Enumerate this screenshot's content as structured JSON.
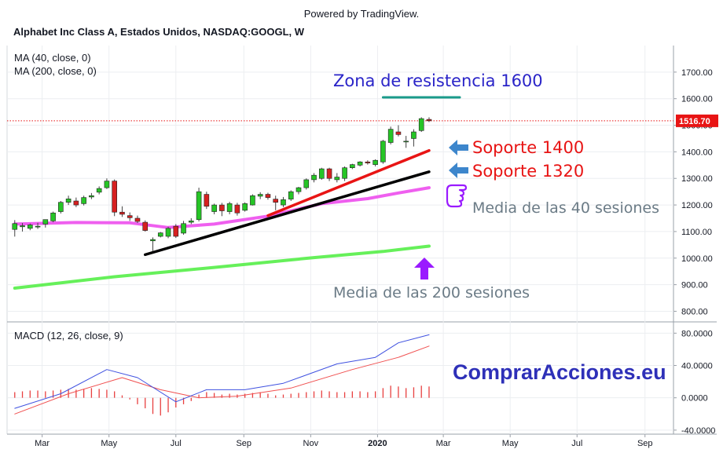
{
  "header": {
    "powered_by": "Powered by TradingView.",
    "symbol": "Alphabet Inc Class A, Estados Unidos, NASDAQ:GOOGL, W"
  },
  "indicators": {
    "ma40": "MA (40, close, 0)",
    "ma200": "MA (200, close, 0)",
    "macd": "MACD (12, 26, close, 9)"
  },
  "annotations": {
    "resistance": "Zona de resistencia 1600",
    "support_1400": "Soporte 1400",
    "support_1320": "Soporte 1320",
    "ma40_label": "Media de las 40 sesiones",
    "ma200_label": "Media de las 200 sesiones",
    "brand": "ComprarAcciones.eu"
  },
  "colors": {
    "up": "#26c526",
    "down": "#d62020",
    "ma40": "#ef5fef",
    "ma200": "#66f05a",
    "support_1400": "#e81414",
    "support_1320": "#000000",
    "resistance": "#1a9a8a",
    "last_price_tag": "#e81414",
    "arrow_blue": "#3d86cc",
    "arrow_purple": "#9a1aff",
    "brand": "#2e30b8",
    "macd_line": "#3f51e0",
    "signal_line": "#f05050",
    "hist": "#e84040"
  },
  "icons": {
    "support_arrows": "left-arrow-icon",
    "ma200_arrow": "up-arrow-icon",
    "ma40_pointer": "pointing-hand-icon"
  },
  "chart_data": [
    {
      "type": "candlestick",
      "interval": "W",
      "price_axis": {
        "ticks": [
          "1700.00",
          "1600.00",
          "1500.00",
          "1400.00",
          "1300.00",
          "1200.00",
          "1100.00",
          "1000.00",
          "900.00",
          "800.00"
        ],
        "range": [
          760,
          1800
        ]
      },
      "last_price": "1516.70",
      "time_axis": [
        "Mar",
        "May",
        "Jul",
        "Sep",
        "Nov",
        "2020",
        "Mar",
        "May",
        "Jul",
        "Sep"
      ],
      "x_range": [
        "2019-01-28",
        "2020-09-27"
      ],
      "candles": [
        {
          "date": "2019-02-04",
          "o": 1108,
          "h": 1143,
          "l": 1081,
          "c": 1130
        },
        {
          "date": "2019-02-11",
          "o": 1118,
          "h": 1132,
          "l": 1100,
          "c": 1122
        },
        {
          "date": "2019-02-18",
          "o": 1112,
          "h": 1130,
          "l": 1105,
          "c": 1125
        },
        {
          "date": "2019-02-25",
          "o": 1118,
          "h": 1133,
          "l": 1110,
          "c": 1120
        },
        {
          "date": "2019-03-04",
          "o": 1128,
          "h": 1142,
          "l": 1115,
          "c": 1145
        },
        {
          "date": "2019-03-11",
          "o": 1140,
          "h": 1175,
          "l": 1135,
          "c": 1170
        },
        {
          "date": "2019-03-18",
          "o": 1175,
          "h": 1215,
          "l": 1168,
          "c": 1210
        },
        {
          "date": "2019-03-25",
          "o": 1210,
          "h": 1235,
          "l": 1200,
          "c": 1223
        },
        {
          "date": "2019-04-01",
          "o": 1215,
          "h": 1228,
          "l": 1192,
          "c": 1200
        },
        {
          "date": "2019-04-08",
          "o": 1205,
          "h": 1235,
          "l": 1198,
          "c": 1228
        },
        {
          "date": "2019-04-15",
          "o": 1230,
          "h": 1245,
          "l": 1222,
          "c": 1235
        },
        {
          "date": "2019-04-22",
          "o": 1248,
          "h": 1270,
          "l": 1240,
          "c": 1262
        },
        {
          "date": "2019-04-29",
          "o": 1265,
          "h": 1300,
          "l": 1260,
          "c": 1290
        },
        {
          "date": "2019-05-06",
          "o": 1290,
          "h": 1296,
          "l": 1158,
          "c": 1173
        },
        {
          "date": "2019-05-13",
          "o": 1173,
          "h": 1195,
          "l": 1155,
          "c": 1165
        },
        {
          "date": "2019-05-20",
          "o": 1160,
          "h": 1172,
          "l": 1140,
          "c": 1152
        },
        {
          "date": "2019-05-27",
          "o": 1150,
          "h": 1160,
          "l": 1132,
          "c": 1138
        },
        {
          "date": "2019-06-03",
          "o": 1135,
          "h": 1142,
          "l": 1100,
          "c": 1104
        },
        {
          "date": "2019-06-10",
          "o": 1065,
          "h": 1078,
          "l": 1026,
          "c": 1070
        },
        {
          "date": "2019-06-17",
          "o": 1082,
          "h": 1098,
          "l": 1078,
          "c": 1095
        },
        {
          "date": "2019-06-24",
          "o": 1082,
          "h": 1118,
          "l": 1075,
          "c": 1112
        },
        {
          "date": "2019-07-01",
          "o": 1120,
          "h": 1128,
          "l": 1076,
          "c": 1082
        },
        {
          "date": "2019-07-08",
          "o": 1094,
          "h": 1140,
          "l": 1088,
          "c": 1130
        },
        {
          "date": "2019-07-15",
          "o": 1135,
          "h": 1150,
          "l": 1128,
          "c": 1140
        },
        {
          "date": "2019-07-22",
          "o": 1145,
          "h": 1265,
          "l": 1138,
          "c": 1250
        },
        {
          "date": "2019-07-29",
          "o": 1240,
          "h": 1250,
          "l": 1185,
          "c": 1195
        },
        {
          "date": "2019-08-05",
          "o": 1175,
          "h": 1205,
          "l": 1165,
          "c": 1200
        },
        {
          "date": "2019-08-12",
          "o": 1200,
          "h": 1208,
          "l": 1158,
          "c": 1178
        },
        {
          "date": "2019-08-19",
          "o": 1175,
          "h": 1212,
          "l": 1165,
          "c": 1205
        },
        {
          "date": "2019-08-26",
          "o": 1200,
          "h": 1208,
          "l": 1160,
          "c": 1170
        },
        {
          "date": "2019-09-02",
          "o": 1180,
          "h": 1210,
          "l": 1175,
          "c": 1205
        },
        {
          "date": "2019-09-09",
          "o": 1200,
          "h": 1240,
          "l": 1198,
          "c": 1235
        },
        {
          "date": "2019-09-16",
          "o": 1233,
          "h": 1248,
          "l": 1222,
          "c": 1240
        },
        {
          "date": "2019-09-23",
          "o": 1240,
          "h": 1246,
          "l": 1220,
          "c": 1228
        },
        {
          "date": "2019-09-30",
          "o": 1222,
          "h": 1235,
          "l": 1180,
          "c": 1210
        },
        {
          "date": "2019-10-07",
          "o": 1200,
          "h": 1230,
          "l": 1192,
          "c": 1220
        },
        {
          "date": "2019-10-14",
          "o": 1222,
          "h": 1255,
          "l": 1215,
          "c": 1250
        },
        {
          "date": "2019-10-21",
          "o": 1250,
          "h": 1268,
          "l": 1240,
          "c": 1265
        },
        {
          "date": "2019-10-28",
          "o": 1265,
          "h": 1300,
          "l": 1258,
          "c": 1295
        },
        {
          "date": "2019-11-04",
          "o": 1295,
          "h": 1320,
          "l": 1285,
          "c": 1312
        },
        {
          "date": "2019-11-11",
          "o": 1300,
          "h": 1340,
          "l": 1295,
          "c": 1336
        },
        {
          "date": "2019-11-18",
          "o": 1336,
          "h": 1340,
          "l": 1290,
          "c": 1300
        },
        {
          "date": "2019-11-25",
          "o": 1295,
          "h": 1320,
          "l": 1285,
          "c": 1305
        },
        {
          "date": "2019-12-02",
          "o": 1300,
          "h": 1345,
          "l": 1290,
          "c": 1340
        },
        {
          "date": "2019-12-09",
          "o": 1340,
          "h": 1355,
          "l": 1335,
          "c": 1352
        },
        {
          "date": "2019-12-16",
          "o": 1350,
          "h": 1365,
          "l": 1345,
          "c": 1362
        },
        {
          "date": "2019-12-23",
          "o": 1362,
          "h": 1368,
          "l": 1352,
          "c": 1358
        },
        {
          "date": "2019-12-30",
          "o": 1352,
          "h": 1372,
          "l": 1345,
          "c": 1368
        },
        {
          "date": "2020-01-06",
          "o": 1362,
          "h": 1445,
          "l": 1355,
          "c": 1440
        },
        {
          "date": "2020-01-13",
          "o": 1435,
          "h": 1495,
          "l": 1428,
          "c": 1485
        },
        {
          "date": "2020-01-20",
          "o": 1475,
          "h": 1500,
          "l": 1458,
          "c": 1465
        },
        {
          "date": "2020-01-27",
          "o": 1440,
          "h": 1460,
          "l": 1415,
          "c": 1440
        },
        {
          "date": "2020-02-03",
          "o": 1450,
          "h": 1485,
          "l": 1420,
          "c": 1475
        },
        {
          "date": "2020-02-10",
          "o": 1480,
          "h": 1530,
          "l": 1475,
          "c": 1525
        },
        {
          "date": "2020-02-17",
          "o": 1522,
          "h": 1530,
          "l": 1512,
          "c": 1516.7
        }
      ],
      "ma40": [
        {
          "date": "2019-02-04",
          "value": 1128
        },
        {
          "date": "2019-04-01",
          "value": 1134
        },
        {
          "date": "2019-05-20",
          "value": 1133
        },
        {
          "date": "2019-06-24",
          "value": 1115
        },
        {
          "date": "2019-08-05",
          "value": 1128
        },
        {
          "date": "2019-09-23",
          "value": 1158
        },
        {
          "date": "2019-11-11",
          "value": 1205
        },
        {
          "date": "2019-12-23",
          "value": 1224
        },
        {
          "date": "2020-01-20",
          "value": 1245
        },
        {
          "date": "2020-02-17",
          "value": 1265
        }
      ],
      "ma200": [
        {
          "date": "2019-02-04",
          "value": 887
        },
        {
          "date": "2019-05-06",
          "value": 930
        },
        {
          "date": "2019-08-05",
          "value": 965
        },
        {
          "date": "2019-11-04",
          "value": 1002
        },
        {
          "date": "2020-01-06",
          "value": 1025
        },
        {
          "date": "2020-02-17",
          "value": 1045
        }
      ],
      "trendlines": [
        {
          "name": "Soporte 1400",
          "from": {
            "date": "2019-09-23",
            "value": 1160
          },
          "to": {
            "date": "2020-02-17",
            "value": 1405
          }
        },
        {
          "name": "Soporte 1320",
          "from": {
            "date": "2019-06-03",
            "value": 1013
          },
          "to": {
            "date": "2020-02-17",
            "value": 1325
          }
        },
        {
          "name": "Zona de resistencia 1600",
          "from": {
            "date": "2020-01-06",
            "value": 1605
          },
          "to": {
            "date": "2020-03-16",
            "value": 1605
          }
        }
      ]
    },
    {
      "type": "macd",
      "axis": {
        "ticks": [
          "80.0000",
          "40.0000",
          "0.0000",
          "-40.0000"
        ],
        "range": [
          -45,
          92
        ]
      },
      "macd": [
        {
          "date": "2019-02-04",
          "value": -13
        },
        {
          "date": "2019-03-18",
          "value": 5
        },
        {
          "date": "2019-04-29",
          "value": 35
        },
        {
          "date": "2019-05-27",
          "value": 25
        },
        {
          "date": "2019-07-01",
          "value": -5
        },
        {
          "date": "2019-07-29",
          "value": 10
        },
        {
          "date": "2019-09-02",
          "value": 10
        },
        {
          "date": "2019-10-07",
          "value": 18
        },
        {
          "date": "2019-11-25",
          "value": 42
        },
        {
          "date": "2019-12-30",
          "value": 50
        },
        {
          "date": "2020-01-20",
          "value": 68
        },
        {
          "date": "2020-02-17",
          "value": 78
        }
      ],
      "signal": [
        {
          "date": "2019-02-04",
          "value": -20
        },
        {
          "date": "2019-03-25",
          "value": 5
        },
        {
          "date": "2019-05-13",
          "value": 25
        },
        {
          "date": "2019-06-17",
          "value": 10
        },
        {
          "date": "2019-07-22",
          "value": 0
        },
        {
          "date": "2019-08-26",
          "value": 2
        },
        {
          "date": "2019-10-14",
          "value": 12
        },
        {
          "date": "2019-12-09",
          "value": 35
        },
        {
          "date": "2020-01-20",
          "value": 50
        },
        {
          "date": "2020-02-17",
          "value": 64
        }
      ],
      "histogram": [
        {
          "date": "2019-02-04",
          "value": 7
        },
        {
          "date": "2019-02-11",
          "value": 8
        },
        {
          "date": "2019-02-18",
          "value": 9
        },
        {
          "date": "2019-02-25",
          "value": 9
        },
        {
          "date": "2019-03-04",
          "value": 8
        },
        {
          "date": "2019-03-11",
          "value": 9
        },
        {
          "date": "2019-03-18",
          "value": 10
        },
        {
          "date": "2019-03-25",
          "value": 11
        },
        {
          "date": "2019-04-01",
          "value": 10
        },
        {
          "date": "2019-04-08",
          "value": 11
        },
        {
          "date": "2019-04-15",
          "value": 12
        },
        {
          "date": "2019-04-22",
          "value": 11
        },
        {
          "date": "2019-04-29",
          "value": 10
        },
        {
          "date": "2019-05-06",
          "value": 8
        },
        {
          "date": "2019-05-13",
          "value": 3
        },
        {
          "date": "2019-05-20",
          "value": -2
        },
        {
          "date": "2019-05-27",
          "value": -8
        },
        {
          "date": "2019-06-03",
          "value": -13
        },
        {
          "date": "2019-06-10",
          "value": -20
        },
        {
          "date": "2019-06-17",
          "value": -22
        },
        {
          "date": "2019-06-24",
          "value": -18
        },
        {
          "date": "2019-07-01",
          "value": -12
        },
        {
          "date": "2019-07-08",
          "value": -8
        },
        {
          "date": "2019-07-15",
          "value": -4
        },
        {
          "date": "2019-07-22",
          "value": 4
        },
        {
          "date": "2019-07-29",
          "value": 7
        },
        {
          "date": "2019-08-05",
          "value": 6
        },
        {
          "date": "2019-08-12",
          "value": 4
        },
        {
          "date": "2019-08-19",
          "value": 5
        },
        {
          "date": "2019-08-26",
          "value": 4
        },
        {
          "date": "2019-09-02",
          "value": 5
        },
        {
          "date": "2019-09-09",
          "value": 6
        },
        {
          "date": "2019-09-16",
          "value": 7
        },
        {
          "date": "2019-09-23",
          "value": 5
        },
        {
          "date": "2019-09-30",
          "value": 3
        },
        {
          "date": "2019-10-07",
          "value": 4
        },
        {
          "date": "2019-10-14",
          "value": 5
        },
        {
          "date": "2019-10-21",
          "value": 6
        },
        {
          "date": "2019-10-28",
          "value": 7
        },
        {
          "date": "2019-11-04",
          "value": 8
        },
        {
          "date": "2019-11-11",
          "value": 9
        },
        {
          "date": "2019-11-18",
          "value": 8
        },
        {
          "date": "2019-11-25",
          "value": 7
        },
        {
          "date": "2019-12-02",
          "value": 7
        },
        {
          "date": "2019-12-09",
          "value": 8
        },
        {
          "date": "2019-12-16",
          "value": 8
        },
        {
          "date": "2019-12-23",
          "value": 7
        },
        {
          "date": "2019-12-30",
          "value": 8
        },
        {
          "date": "2020-01-06",
          "value": 12
        },
        {
          "date": "2020-01-13",
          "value": 15
        },
        {
          "date": "2020-01-20",
          "value": 14
        },
        {
          "date": "2020-01-27",
          "value": 12
        },
        {
          "date": "2020-02-03",
          "value": 13
        },
        {
          "date": "2020-02-10",
          "value": 15
        },
        {
          "date": "2020-02-17",
          "value": 14
        }
      ]
    }
  ]
}
